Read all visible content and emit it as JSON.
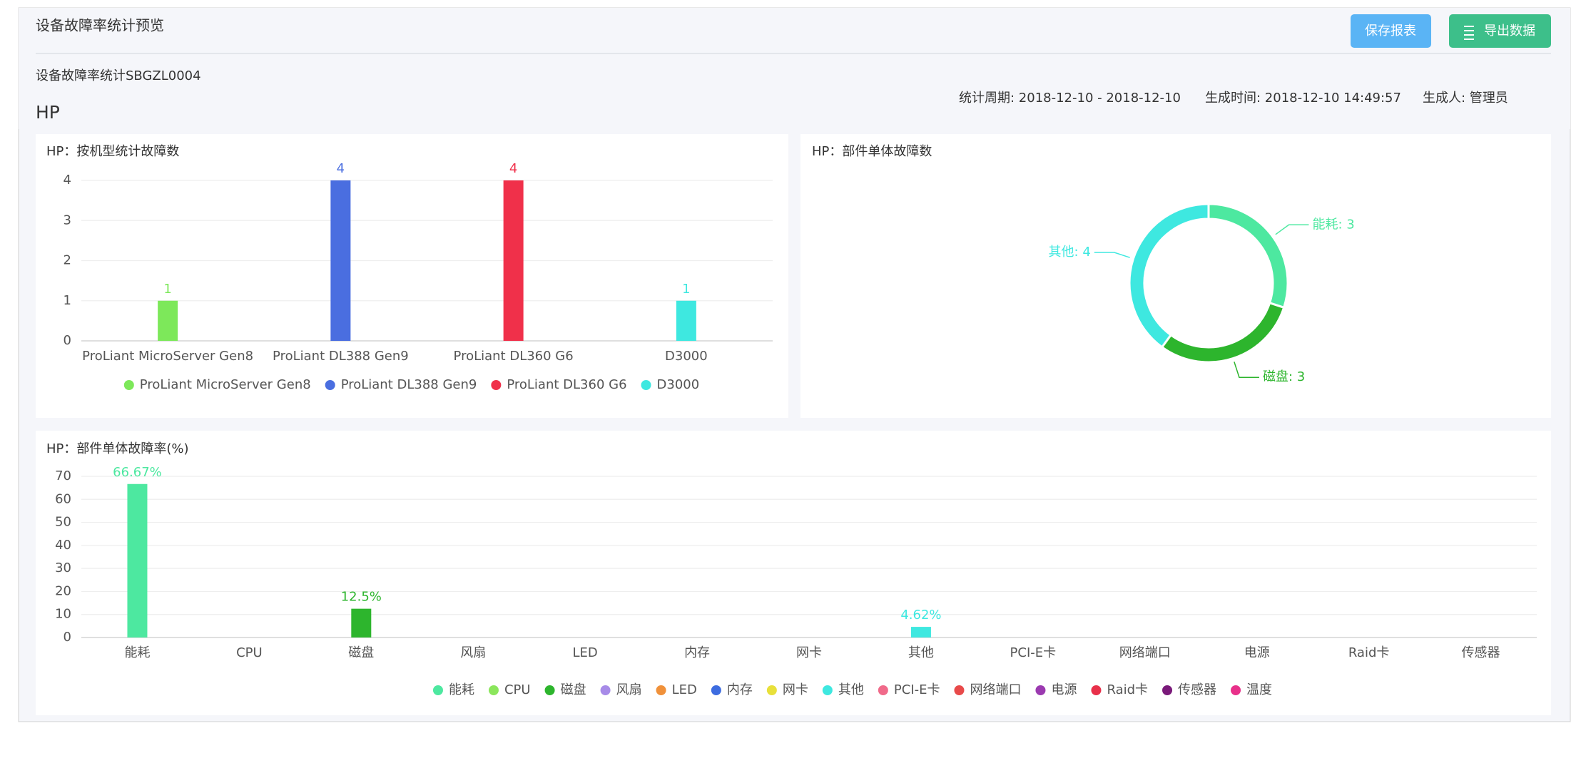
{
  "header": {
    "title": "设备故障率统计预览",
    "buttons": [
      "保存报表",
      "导出数据"
    ],
    "report_id": "设备故障率统计SBGZL0004",
    "section": "HP",
    "meta": [
      "统计周期: 2018-12-10 - 2018-12-10",
      "生成时间: 2018-12-10 14:49:57",
      "生成人: 管理员"
    ]
  },
  "chart_data": [
    {
      "type": "bar",
      "title": "HP：按机型统计故障数",
      "categories": [
        "ProLiant MicroServer Gen8",
        "ProLiant  DL388 Gen9",
        "ProLiant DL360 G6",
        "D3000"
      ],
      "values": [
        1,
        4,
        4,
        1
      ],
      "colors": [
        "#7de85a",
        "#4a6ee0",
        "#f0304a",
        "#3ee8e0"
      ],
      "ylim": [
        0,
        4
      ],
      "yticks": [
        0,
        1,
        2,
        3,
        4
      ],
      "grid": true
    },
    {
      "type": "pie",
      "title": "HP：部件单体故障数",
      "categories": [
        "能耗",
        "磁盘",
        "其他"
      ],
      "values": [
        3,
        3,
        4
      ],
      "value_labels": [
        "能耗: 3",
        "磁盘: 3",
        "其他: 4"
      ],
      "colors": [
        "#4de8a0",
        "#2db52d",
        "#3ee8e0"
      ]
    },
    {
      "type": "bar",
      "title": "HP：部件单体故障率(%)",
      "categories": [
        "能耗",
        "CPU",
        "磁盘",
        "风扇",
        "LED",
        "内存",
        "网卡",
        "其他",
        "PCI-E卡",
        "网络端口",
        "电源",
        "Raid卡",
        "传感器"
      ],
      "values": [
        66.67,
        0,
        12.5,
        0,
        0,
        0,
        0,
        4.62,
        0,
        0,
        0,
        0,
        0
      ],
      "value_labels": [
        "66.67%",
        null,
        "12.5%",
        null,
        null,
        null,
        null,
        "4.62%",
        null,
        null,
        null,
        null,
        null
      ],
      "colors": [
        "#4de8a0",
        "#8be65c",
        "#2db52d",
        "#a78be8",
        "#f0913a",
        "#3d6ce0",
        "#e8e03a",
        "#3ee8e0",
        "#f06a8a",
        "#e84a4a",
        "#9b3ab0",
        "#e8304a",
        "#7a1a7a"
      ],
      "legend": [
        {
          "name": "能耗",
          "color": "#4de8a0"
        },
        {
          "name": "CPU",
          "color": "#8be65c"
        },
        {
          "name": "磁盘",
          "color": "#2db52d"
        },
        {
          "name": "风扇",
          "color": "#a78be8"
        },
        {
          "name": "LED",
          "color": "#f0913a"
        },
        {
          "name": "内存",
          "color": "#3d6ce0"
        },
        {
          "name": "网卡",
          "color": "#e8e03a"
        },
        {
          "name": "其他",
          "color": "#3ee8e0"
        },
        {
          "name": "PCI-E卡",
          "color": "#f06a8a"
        },
        {
          "name": "网络端口",
          "color": "#e84a4a"
        },
        {
          "name": "电源",
          "color": "#9b3ab0"
        },
        {
          "name": "Raid卡",
          "color": "#e8304a"
        },
        {
          "name": "传感器",
          "color": "#7a1a7a"
        },
        {
          "name": "温度",
          "color": "#e8308a"
        }
      ],
      "ylim": [
        0,
        70
      ],
      "yticks": [
        0,
        10,
        20,
        30,
        40,
        50,
        60,
        70
      ],
      "grid": true
    }
  ]
}
